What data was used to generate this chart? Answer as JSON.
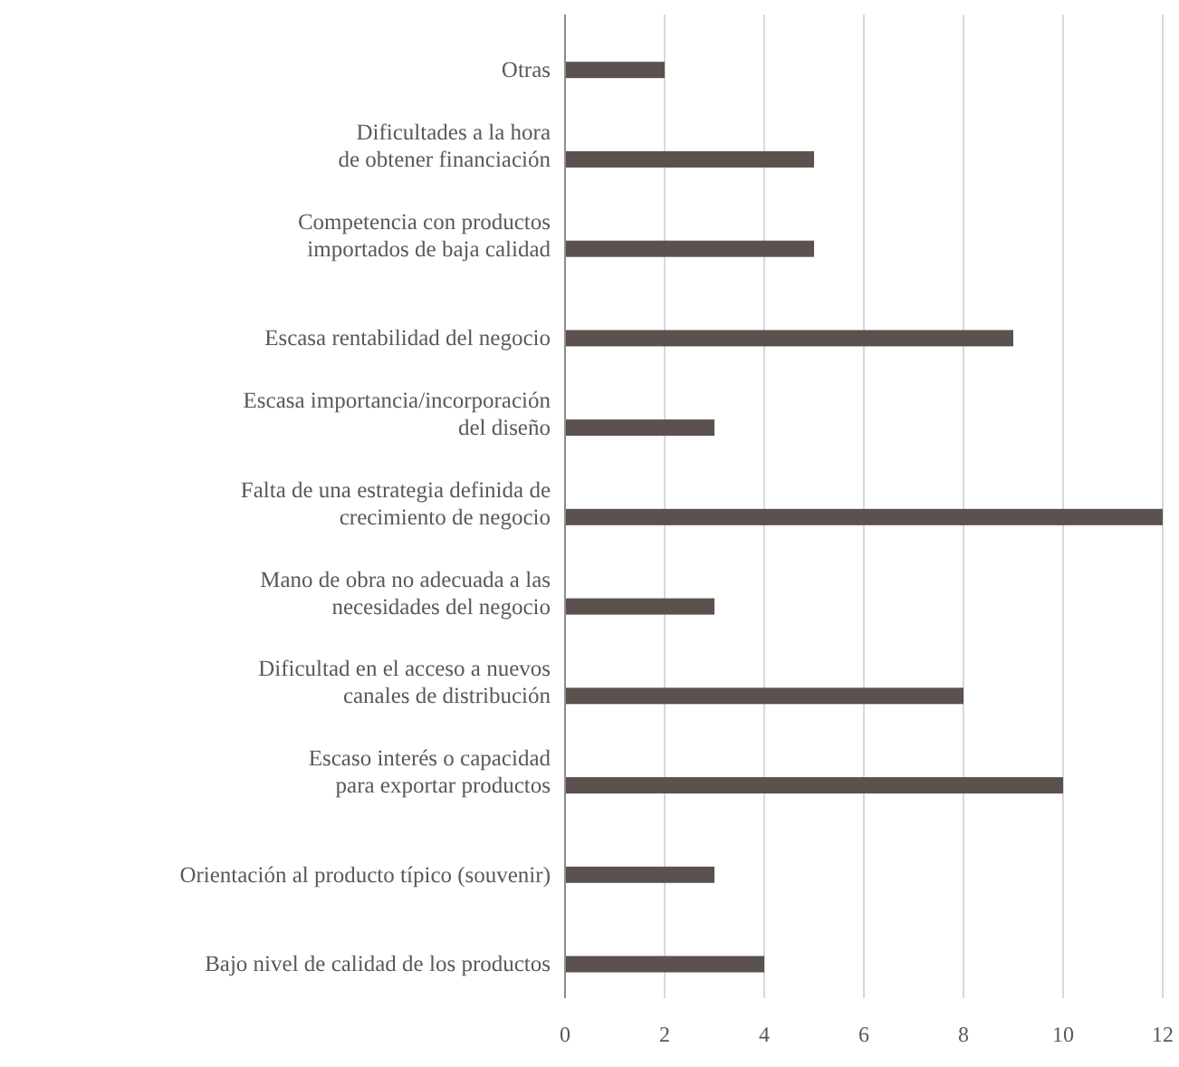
{
  "chart_data": {
    "type": "bar",
    "orientation": "horizontal",
    "categories": [
      "Otras",
      "Dificultades a la hora\nde obtener financiación",
      "Competencia con productos\nimportados de baja calidad",
      "Escasa rentabilidad del negocio",
      "Escasa importancia/incorporación\ndel diseño",
      "Falta de una estrategia definida de\ncrecimiento de negocio",
      "Mano de obra no adecuada a las\nnecesidades del negocio",
      "Dificultad en el acceso a nuevos\ncanales de distribución",
      "Escaso interés o capacidad\npara exportar productos",
      "Orientación al producto típico (souvenir)",
      "Bajo nivel de calidad de los productos"
    ],
    "values": [
      2,
      5,
      5,
      9,
      3,
      12,
      3,
      8,
      10,
      3,
      4
    ],
    "color": "#5b514e",
    "xlim": [
      0,
      12
    ],
    "xticks": [
      0,
      2,
      4,
      6,
      8,
      10,
      12
    ],
    "grid": "x"
  }
}
